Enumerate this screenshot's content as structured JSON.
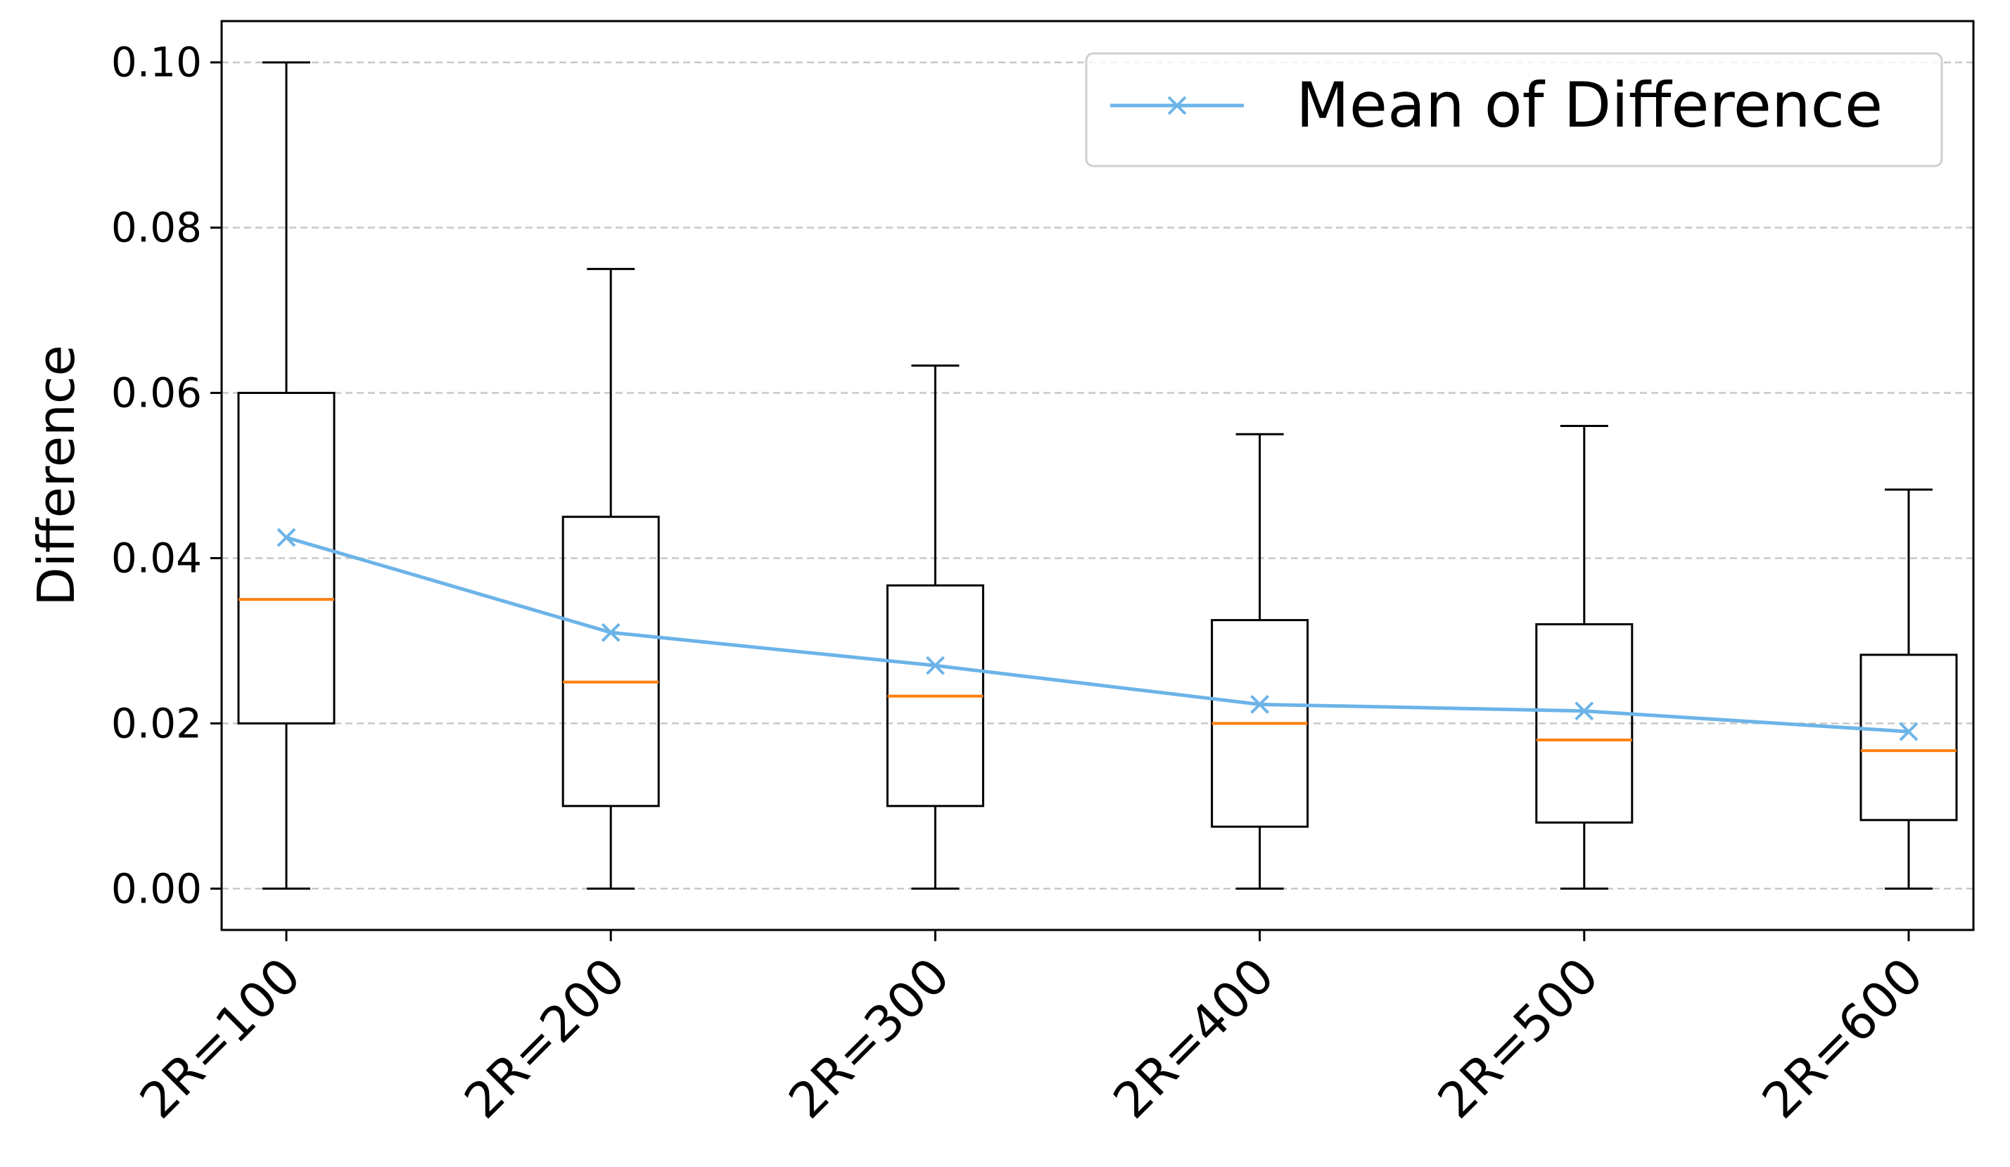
{
  "chart_data": {
    "type": "box",
    "title": "",
    "xlabel": "",
    "ylabel": "Difference",
    "ylim": [
      -0.005,
      0.105
    ],
    "yticks": [
      0.0,
      0.02,
      0.04,
      0.06,
      0.08,
      0.1
    ],
    "ytick_labels": [
      "0.00",
      "0.02",
      "0.04",
      "0.06",
      "0.08",
      "0.10"
    ],
    "categories": [
      "2R=100",
      "2R=200",
      "2R=300",
      "2R=400",
      "2R=500",
      "2R=600"
    ],
    "grid": "y-dashed",
    "legend_position": "top-right",
    "boxes": [
      {
        "whisker_low": 0.0,
        "q1": 0.02,
        "median": 0.035,
        "q3": 0.06,
        "whisker_high": 0.1
      },
      {
        "whisker_low": 0.0,
        "q1": 0.01,
        "median": 0.025,
        "q3": 0.045,
        "whisker_high": 0.075
      },
      {
        "whisker_low": 0.0,
        "q1": 0.01,
        "median": 0.0233,
        "q3": 0.0367,
        "whisker_high": 0.0633
      },
      {
        "whisker_low": 0.0,
        "q1": 0.0075,
        "median": 0.02,
        "q3": 0.0325,
        "whisker_high": 0.055
      },
      {
        "whisker_low": 0.0,
        "q1": 0.008,
        "median": 0.018,
        "q3": 0.032,
        "whisker_high": 0.056
      },
      {
        "whisker_low": 0.0,
        "q1": 0.0083,
        "median": 0.0167,
        "q3": 0.0283,
        "whisker_high": 0.0483
      }
    ],
    "series": [
      {
        "name": "Mean of Difference",
        "values": [
          0.0425,
          0.031,
          0.027,
          0.0223,
          0.0215,
          0.019
        ]
      }
    ],
    "colors": {
      "box": "#000000",
      "median": "#ff7f0e",
      "mean_line": "#6cb4e8",
      "grid": "#c8c8c8"
    }
  }
}
